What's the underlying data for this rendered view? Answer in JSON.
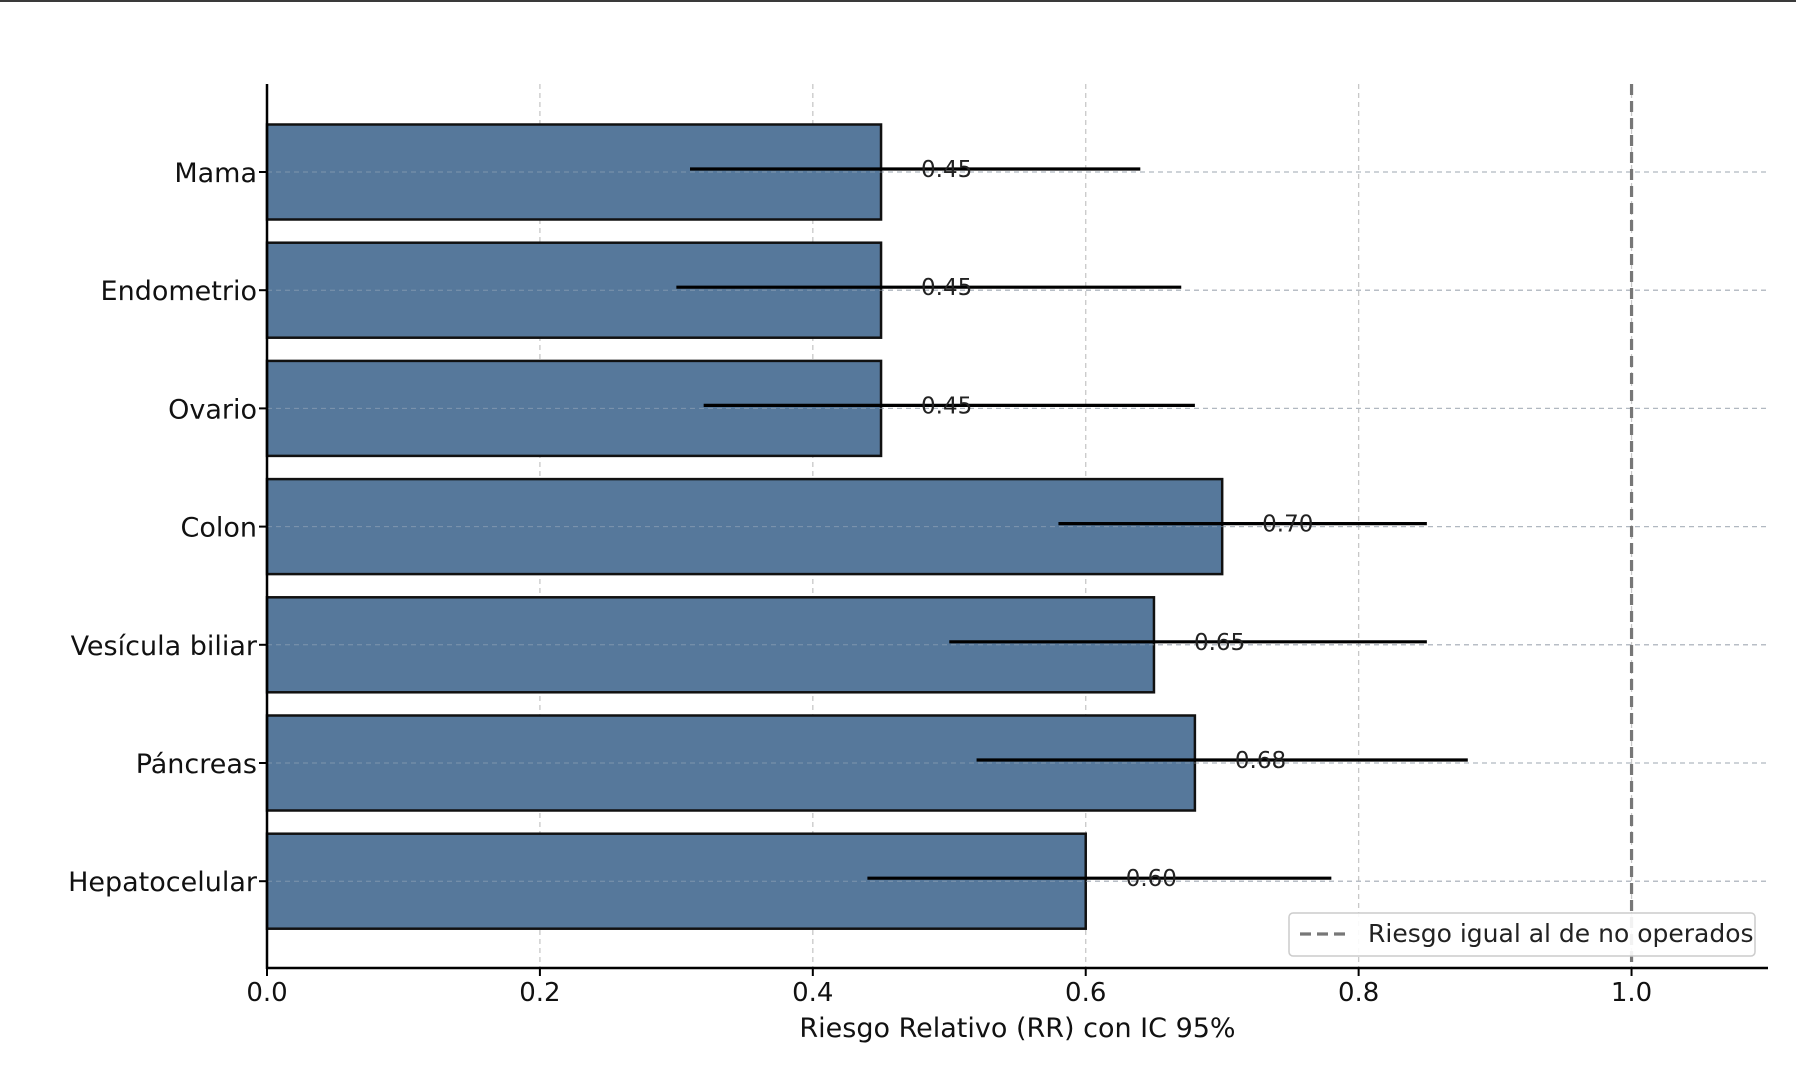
{
  "chart_data": {
    "type": "bar",
    "orientation": "horizontal",
    "categories": [
      "Mama",
      "Endometrio",
      "Ovario",
      "Colon",
      "Vesícula biliar",
      "Páncreas",
      "Hepatocelular"
    ],
    "values": [
      0.45,
      0.45,
      0.45,
      0.7,
      0.65,
      0.68,
      0.6
    ],
    "value_labels": [
      "0.45",
      "0.45",
      "0.45",
      "0.70",
      "0.65",
      "0.68",
      "0.60"
    ],
    "ci_lower": [
      0.31,
      0.3,
      0.32,
      0.58,
      0.5,
      0.52,
      0.44
    ],
    "ci_upper": [
      0.64,
      0.67,
      0.68,
      0.85,
      0.85,
      0.88,
      0.78
    ],
    "title": "",
    "xlabel": "Riesgo Relativo (RR) con IC 95%",
    "ylabel": "",
    "xlim": [
      0,
      1.1
    ],
    "xticks": [
      "0.0",
      "0.2",
      "0.4",
      "0.6",
      "0.8",
      "1.0"
    ],
    "reference_line": {
      "x": 1.0,
      "style": "dashed",
      "label": "Riesgo igual al de no operados"
    },
    "grid": true,
    "legend_position": "bottom-right",
    "colors": {
      "bar": "#56789b",
      "edge": "#111111",
      "reference": "#777777",
      "grid": "#c8c8c8"
    }
  }
}
